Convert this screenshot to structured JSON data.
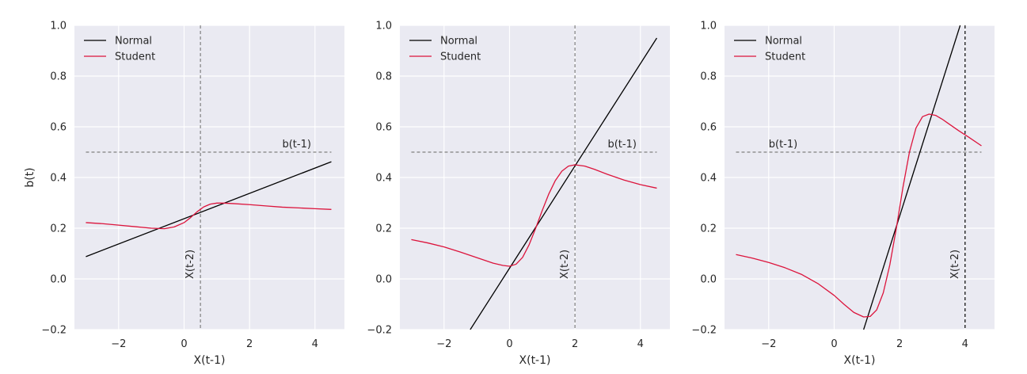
{
  "chart_data": [
    {
      "type": "line",
      "xlabel": "X(t-1)",
      "ylabel": "b(t)",
      "xlim": [
        -3.35,
        4.9
      ],
      "ylim": [
        -0.2,
        1.0
      ],
      "xticks": [
        -2,
        0,
        2,
        4
      ],
      "yticks": [
        -0.2,
        0.0,
        0.2,
        0.4,
        0.6,
        0.8,
        1.0
      ],
      "grid": true,
      "legend": "top-left",
      "series": [
        {
          "name": "Normal",
          "color": "#000000",
          "x": [
            -3.0,
            4.5
          ],
          "y": [
            0.088,
            0.462
          ]
        },
        {
          "name": "Student",
          "color": "#dc143c",
          "x": [
            -3.0,
            -2.5,
            -2.0,
            -1.5,
            -1.0,
            -0.6,
            -0.3,
            0.0,
            0.2,
            0.4,
            0.6,
            0.8,
            1.0,
            1.2,
            1.5,
            2.0,
            2.5,
            3.0,
            3.5,
            4.0,
            4.5
          ],
          "y": [
            0.222,
            0.218,
            0.212,
            0.206,
            0.2,
            0.198,
            0.205,
            0.222,
            0.242,
            0.265,
            0.284,
            0.295,
            0.299,
            0.299,
            0.297,
            0.293,
            0.288,
            0.283,
            0.28,
            0.277,
            0.274
          ]
        }
      ],
      "hline": {
        "y": 0.5,
        "x_start": -3.0,
        "x_end": 4.5,
        "label": "b(t-1)",
        "label_x": 3.0,
        "color": "#808080"
      },
      "vline": {
        "x": 0.5,
        "label": "X(t-2)",
        "color": "#808080"
      }
    },
    {
      "type": "line",
      "xlabel": "X(t-1)",
      "ylabel": "",
      "xlim": [
        -3.35,
        4.9
      ],
      "ylim": [
        -0.2,
        1.0
      ],
      "xticks": [
        -2,
        0,
        2,
        4
      ],
      "yticks": [
        -0.2,
        0.0,
        0.2,
        0.4,
        0.6,
        0.8,
        1.0
      ],
      "grid": true,
      "legend": "top-left",
      "series": [
        {
          "name": "Normal",
          "color": "#000000",
          "x": [
            -1.2,
            4.5
          ],
          "y": [
            -0.2,
            0.95
          ]
        },
        {
          "name": "Student",
          "color": "#dc143c",
          "x": [
            -3.0,
            -2.5,
            -2.0,
            -1.5,
            -1.0,
            -0.5,
            -0.2,
            0.0,
            0.2,
            0.4,
            0.6,
            0.8,
            1.0,
            1.2,
            1.4,
            1.6,
            1.8,
            2.0,
            2.3,
            2.6,
            3.0,
            3.5,
            4.0,
            4.5
          ],
          "y": [
            0.155,
            0.142,
            0.126,
            0.106,
            0.084,
            0.062,
            0.053,
            0.05,
            0.058,
            0.085,
            0.135,
            0.2,
            0.27,
            0.335,
            0.388,
            0.425,
            0.445,
            0.45,
            0.445,
            0.432,
            0.412,
            0.39,
            0.372,
            0.358
          ]
        }
      ],
      "hline": {
        "y": 0.5,
        "x_start": -3.0,
        "x_end": 4.5,
        "label": "b(t-1)",
        "label_x": 3.0,
        "color": "#808080"
      },
      "vline": {
        "x": 2.0,
        "label": "X(t-2)",
        "color": "#808080"
      }
    },
    {
      "type": "line",
      "xlabel": "X(t-1)",
      "ylabel": "",
      "xlim": [
        -3.35,
        4.9
      ],
      "ylim": [
        -0.2,
        1.0
      ],
      "xticks": [
        -2,
        0,
        2,
        4
      ],
      "yticks": [
        -0.2,
        0.0,
        0.2,
        0.4,
        0.6,
        0.8,
        1.0
      ],
      "grid": true,
      "legend": "top-left",
      "series": [
        {
          "name": "Normal",
          "color": "#000000",
          "x": [
            0.9,
            3.85
          ],
          "y": [
            -0.2,
            1.0
          ]
        },
        {
          "name": "Student",
          "color": "#dc143c",
          "x": [
            -3.0,
            -2.5,
            -2.0,
            -1.5,
            -1.0,
            -0.5,
            0.0,
            0.3,
            0.6,
            0.9,
            1.1,
            1.3,
            1.5,
            1.7,
            1.9,
            2.1,
            2.3,
            2.5,
            2.7,
            2.9,
            3.1,
            3.3,
            3.5,
            3.8,
            4.1,
            4.5
          ],
          "y": [
            0.096,
            0.082,
            0.065,
            0.044,
            0.018,
            -0.018,
            -0.065,
            -0.1,
            -0.132,
            -0.15,
            -0.148,
            -0.122,
            -0.055,
            0.055,
            0.2,
            0.36,
            0.5,
            0.595,
            0.64,
            0.65,
            0.645,
            0.63,
            0.612,
            0.585,
            0.56,
            0.525
          ]
        }
      ],
      "hline": {
        "y": 0.5,
        "x_start": -3.0,
        "x_end": 4.5,
        "label": "b(t-1)",
        "label_x": -2.0,
        "color": "#808080"
      },
      "vline": {
        "x": 4.0,
        "label": "X(t-2)",
        "color": "#000000"
      }
    }
  ]
}
